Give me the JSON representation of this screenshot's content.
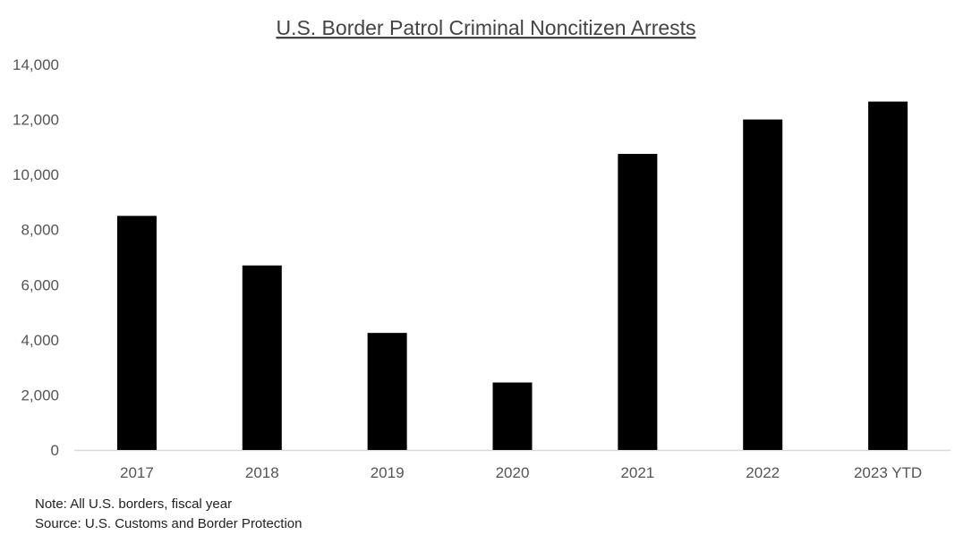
{
  "chart_data": {
    "type": "bar",
    "title": "U.S. Border Patrol Criminal Noncitizen Arrests",
    "xlabel": "",
    "ylabel": "",
    "categories": [
      "2017",
      "2018",
      "2019",
      "2020",
      "2021",
      "2022",
      "2023 YTD"
    ],
    "values": [
      8500,
      6700,
      4250,
      2450,
      10750,
      12000,
      12650
    ],
    "ylim": [
      0,
      14000
    ],
    "yticks": [
      0,
      2000,
      4000,
      6000,
      8000,
      10000,
      12000,
      14000
    ],
    "ytick_labels": [
      "0",
      "2,000",
      "4,000",
      "6,000",
      "8,000",
      "10,000",
      "12,000",
      "14,000"
    ],
    "grid": false,
    "bar_color": "#000000",
    "axis_color": "#d9d9d9",
    "note": "Note: All U.S. borders, fiscal year",
    "source": "Source: U.S. Customs and Border Protection"
  }
}
